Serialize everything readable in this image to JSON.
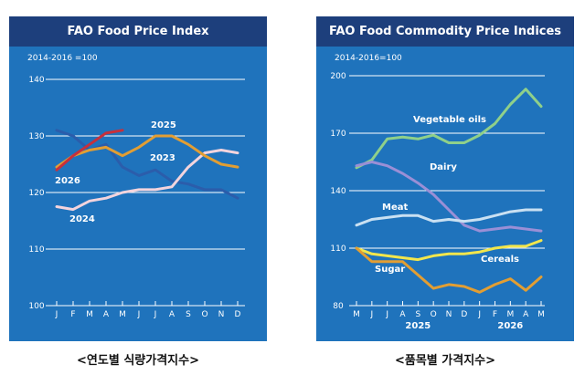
{
  "chart_data": [
    {
      "type": "line",
      "title": "FAO Food Price Index",
      "unit_note": "2014-2016 =100",
      "x": [
        "J",
        "F",
        "M",
        "A",
        "M",
        "J",
        "J",
        "A",
        "S",
        "O",
        "N",
        "D"
      ],
      "ylim": [
        100,
        140
      ],
      "yticks": [
        100,
        110,
        120,
        130,
        140
      ],
      "grid": true,
      "series": [
        {
          "name": "2023",
          "color": "#2b5dab",
          "values": [
            131.0,
            130.0,
            127.5,
            128.5,
            124.5,
            123.0,
            124.0,
            122.0,
            121.5,
            120.5,
            120.5,
            119.0
          ]
        },
        {
          "name": "2024",
          "color": "#f3d4dd",
          "values": [
            117.5,
            117.0,
            118.5,
            119.0,
            120.0,
            120.5,
            120.5,
            121.0,
            124.5,
            127.0,
            127.5,
            127.0
          ]
        },
        {
          "name": "2025",
          "color": "#e29e33",
          "values": [
            124.5,
            126.5,
            127.5,
            128.0,
            126.5,
            128.0,
            130.0,
            130.0,
            128.5,
            126.5,
            125.0,
            124.5
          ]
        },
        {
          "name": "2026",
          "color": "#c6303c",
          "values": [
            124.0,
            126.5,
            128.5,
            130.5,
            131.0,
            null,
            null,
            null,
            null,
            null,
            null,
            null
          ]
        }
      ]
    },
    {
      "type": "line",
      "title": "FAO Food Commodity Price Indices",
      "unit_note": "2014-2016=100",
      "x": [
        "M",
        "J",
        "J",
        "A",
        "S",
        "O",
        "N",
        "D",
        "J",
        "F",
        "M",
        "A",
        "M"
      ],
      "year_labels": [
        {
          "label": "2025",
          "at": 4
        },
        {
          "label": "2026",
          "at": 10
        }
      ],
      "ylim": [
        80,
        200
      ],
      "yticks": [
        80,
        110,
        140,
        170,
        200
      ],
      "grid": true,
      "series": [
        {
          "name": "Vegetable oils",
          "color": "#8fd08a",
          "values": [
            152,
            156,
            167,
            168,
            167,
            169,
            165,
            165,
            169,
            175,
            185,
            193,
            184
          ]
        },
        {
          "name": "Dairy",
          "color": "#9a8fd6",
          "values": [
            153,
            155,
            153,
            149,
            144,
            138,
            130,
            122,
            119,
            120,
            121,
            120,
            119
          ]
        },
        {
          "name": "Meat",
          "color": "#c9e0f2",
          "values": [
            122,
            125,
            126,
            127,
            127,
            124,
            125,
            124,
            125,
            127,
            129,
            130,
            130
          ]
        },
        {
          "name": "Cereals",
          "color": "#f2e64c",
          "values": [
            110,
            107,
            106,
            105,
            104,
            106,
            107,
            107,
            108,
            110,
            111,
            111,
            114
          ]
        },
        {
          "name": "Sugar",
          "color": "#e29e33",
          "values": [
            110,
            103,
            103,
            103,
            96,
            89,
            91,
            90,
            87,
            91,
            94,
            88,
            95
          ]
        }
      ]
    }
  ],
  "captions": {
    "left": "<연도별 식량가격지수>",
    "right": "<품목별 가격지수>"
  }
}
